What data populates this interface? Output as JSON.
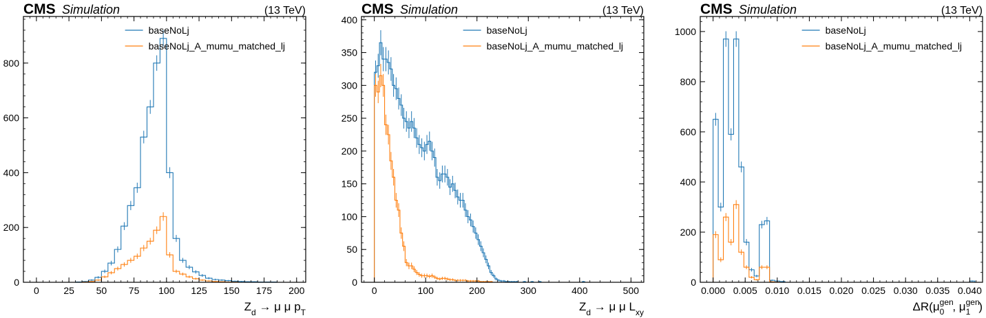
{
  "colors": {
    "series0": "#3f90da",
    "series1": "#ffa90e",
    "series0_line": "#1f77b4",
    "series1_line": "#ff7f0e"
  },
  "chart_data": [
    {
      "type": "line",
      "style": "step-histogram",
      "cms": "CMS",
      "sim": "Simulation",
      "lumi": "(13 TeV)",
      "xlabel": "Z_d → μ μ p_T",
      "ylabel": "",
      "xlim": [
        -10,
        207
      ],
      "ylim": [
        0,
        970
      ],
      "xticks": [
        0,
        25,
        50,
        75,
        100,
        125,
        150,
        175,
        200
      ],
      "xticklabels": [
        "0",
        "25",
        "50",
        "75",
        "100",
        "125",
        "150",
        "175",
        "200"
      ],
      "yticks": [
        0,
        200,
        400,
        600,
        800
      ],
      "yticklabels": [
        "0",
        "200",
        "400",
        "600",
        "800"
      ],
      "legend_loc": "top-right",
      "bin_edges": [
        0,
        5,
        10,
        15,
        20,
        25,
        30,
        35,
        40,
        45,
        50,
        55,
        60,
        65,
        70,
        75,
        80,
        85,
        90,
        95,
        100,
        105,
        110,
        115,
        120,
        125,
        130,
        135,
        140,
        145,
        150,
        155,
        160,
        165,
        170,
        175,
        180,
        185,
        190,
        195,
        200
      ],
      "series": [
        {
          "name": "baseNoLj",
          "values": [
            0,
            0,
            0,
            0,
            0,
            0,
            1,
            3,
            8,
            18,
            40,
            70,
            120,
            205,
            280,
            345,
            530,
            640,
            800,
            890,
            400,
            160,
            80,
            55,
            38,
            25,
            15,
            10,
            8,
            6,
            4,
            3,
            2,
            2,
            1,
            1,
            1,
            0,
            0,
            0
          ]
        },
        {
          "name": "baseNoLj_A_mumu_matched_lj",
          "values": [
            0,
            0,
            0,
            0,
            0,
            0,
            0,
            1,
            3,
            8,
            20,
            35,
            50,
            65,
            80,
            95,
            125,
            150,
            190,
            240,
            100,
            40,
            30,
            20,
            13,
            8,
            5,
            3,
            2,
            1,
            1,
            0,
            0,
            0,
            0,
            0,
            0,
            0,
            0,
            0
          ]
        }
      ]
    },
    {
      "type": "line",
      "style": "step-histogram",
      "cms": "CMS",
      "sim": "Simulation",
      "lumi": "(13 TeV)",
      "xlabel": "Z_d → μ μ L_xy",
      "ylabel": "",
      "xlim": [
        -25,
        525
      ],
      "ylim": [
        0,
        405
      ],
      "xticks": [
        0,
        100,
        200,
        300,
        400,
        500
      ],
      "xticklabels": [
        "0",
        "100",
        "200",
        "300",
        "400",
        "500"
      ],
      "yticks": [
        0,
        50,
        100,
        150,
        200,
        250,
        300,
        350,
        400
      ],
      "yticklabels": [
        "0",
        "50",
        "100",
        "150",
        "200",
        "250",
        "300",
        "350",
        "400"
      ],
      "legend_loc": "top-right",
      "bin_edges": [
        0,
        5,
        10,
        15,
        20,
        25,
        30,
        35,
        40,
        45,
        50,
        55,
        60,
        65,
        70,
        75,
        80,
        85,
        90,
        95,
        100,
        105,
        110,
        115,
        120,
        125,
        130,
        135,
        140,
        145,
        150,
        155,
        160,
        165,
        170,
        175,
        180,
        185,
        190,
        195,
        200,
        205,
        210,
        215,
        220,
        225,
        230,
        235,
        240,
        245,
        250,
        255,
        260,
        265,
        270,
        275,
        280,
        285,
        290,
        295,
        300,
        305,
        310,
        315,
        320,
        325,
        330,
        335,
        340,
        345,
        350,
        355,
        360,
        365,
        370,
        375,
        380,
        385,
        390,
        395,
        400,
        405,
        410,
        415,
        420,
        425,
        430,
        435,
        440,
        445,
        450,
        455,
        460,
        465,
        470,
        475,
        480,
        485,
        490,
        495,
        500
      ],
      "series": [
        {
          "name": "baseNoLj",
          "values": [
            320,
            330,
            365,
            340,
            340,
            335,
            325,
            300,
            295,
            280,
            270,
            250,
            245,
            235,
            245,
            235,
            220,
            210,
            205,
            200,
            210,
            215,
            200,
            190,
            160,
            155,
            165,
            165,
            160,
            145,
            150,
            140,
            130,
            125,
            125,
            110,
            100,
            95,
            85,
            75,
            65,
            55,
            45,
            35,
            25,
            15,
            10,
            5,
            3,
            2,
            2,
            1,
            1,
            1,
            1,
            1,
            0,
            0,
            1,
            0,
            0,
            1,
            0,
            0,
            1,
            0,
            0,
            0,
            0,
            0,
            0,
            0,
            0,
            0,
            0,
            0,
            0,
            0,
            0,
            0,
            0,
            1,
            0,
            0,
            0,
            0,
            0,
            0,
            0,
            0,
            0,
            0,
            0,
            0,
            0,
            0,
            0,
            0,
            0,
            0
          ]
        },
        {
          "name": "baseNoLj_A_mumu_matched_lj",
          "values": [
            300,
            290,
            315,
            300,
            240,
            225,
            185,
            160,
            125,
            110,
            75,
            55,
            30,
            25,
            25,
            20,
            15,
            12,
            10,
            10,
            10,
            9,
            10,
            8,
            6,
            5,
            6,
            6,
            5,
            4,
            4,
            3,
            3,
            3,
            3,
            3,
            2,
            2,
            2,
            2,
            2,
            1,
            1,
            1,
            1,
            1,
            0,
            0,
            0,
            0,
            0,
            0,
            0,
            0,
            0,
            0,
            0,
            0,
            0,
            0,
            0,
            0,
            0,
            0,
            0,
            0,
            0,
            0,
            0,
            0,
            0,
            0,
            0,
            0,
            0,
            0,
            0,
            0,
            0,
            0,
            0,
            0,
            0,
            0,
            0,
            0,
            0,
            0,
            0,
            0,
            0,
            0,
            0,
            0,
            0,
            0,
            0,
            0,
            0,
            0
          ]
        }
      ]
    },
    {
      "type": "line",
      "style": "step-histogram",
      "cms": "CMS",
      "sim": "Simulation",
      "lumi": "(13 TeV)",
      "xlabel": "ΔR(μ₀^gen, μ₁^gen)",
      "ylabel": "",
      "xlim": [
        -0.002,
        0.042
      ],
      "ylim": [
        0,
        1060
      ],
      "xticks": [
        0.0,
        0.005,
        0.01,
        0.015,
        0.02,
        0.025,
        0.03,
        0.035,
        0.04
      ],
      "xticklabels": [
        "0.000",
        "0.005",
        "0.010",
        "0.015",
        "0.020",
        "0.025",
        "0.030",
        "0.035",
        "0.040"
      ],
      "yticks": [
        0,
        200,
        400,
        600,
        800,
        1000
      ],
      "yticklabels": [
        "0",
        "200",
        "400",
        "600",
        "800",
        "1000"
      ],
      "legend_loc": "top-right",
      "bin_edges": [
        0.0,
        0.0008,
        0.0016,
        0.0024,
        0.0032,
        0.004,
        0.0048,
        0.0056,
        0.0064,
        0.0072,
        0.008,
        0.0088,
        0.0096,
        0.0104,
        0.0112,
        0.012,
        0.0128,
        0.0136,
        0.0144,
        0.0152,
        0.016,
        0.0168,
        0.0176,
        0.0184,
        0.0192,
        0.02,
        0.0208,
        0.0216,
        0.0224,
        0.0232,
        0.024,
        0.0248,
        0.0256,
        0.0264,
        0.0272,
        0.028,
        0.0288,
        0.0296,
        0.0304,
        0.0312,
        0.032,
        0.0328,
        0.0336,
        0.0344,
        0.0352,
        0.036,
        0.0368,
        0.0376,
        0.0384,
        0.0392,
        0.04,
        0.0408
      ],
      "series": [
        {
          "name": "baseNoLj",
          "values": [
            650,
            300,
            970,
            590,
            970,
            460,
            160,
            50,
            25,
            230,
            245,
            8,
            5,
            3,
            0,
            0,
            0,
            0,
            0,
            0,
            0,
            0,
            0,
            0,
            0,
            0,
            0,
            0,
            0,
            0,
            0,
            0,
            0,
            0,
            0,
            0,
            0,
            0,
            0,
            0,
            0,
            0,
            0,
            0,
            0,
            0,
            0,
            0,
            0,
            0,
            5
          ]
        },
        {
          "name": "baseNoLj_A_mumu_matched_lj",
          "values": [
            190,
            90,
            260,
            160,
            310,
            120,
            60,
            20,
            10,
            60,
            60,
            2,
            1,
            0,
            0,
            0,
            0,
            0,
            0,
            0,
            0,
            0,
            0,
            0,
            0,
            0,
            0,
            0,
            0,
            0,
            0,
            0,
            0,
            0,
            0,
            0,
            0,
            0,
            0,
            0,
            0,
            0,
            0,
            0,
            0,
            0,
            0,
            0,
            0,
            0,
            0
          ]
        }
      ]
    }
  ]
}
